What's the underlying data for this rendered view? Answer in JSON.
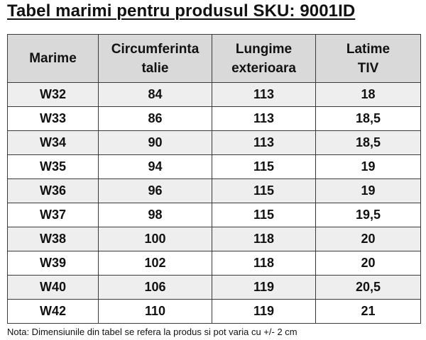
{
  "title": "Tabel marimi pentru produsul SKU: 9001ID",
  "table": {
    "headers": [
      [
        "Marime"
      ],
      [
        "Circumferinta",
        "talie"
      ],
      [
        "Lungime",
        "exterioara"
      ],
      [
        "Latime",
        "TIV"
      ]
    ],
    "rows": [
      [
        "W32",
        "84",
        "113",
        "18"
      ],
      [
        "W33",
        "86",
        "113",
        "18,5"
      ],
      [
        "W34",
        "90",
        "113",
        "18,5"
      ],
      [
        "W35",
        "94",
        "115",
        "19"
      ],
      [
        "W36",
        "96",
        "115",
        "19"
      ],
      [
        "W37",
        "98",
        "115",
        "19,5"
      ],
      [
        "W38",
        "100",
        "118",
        "20"
      ],
      [
        "W39",
        "102",
        "118",
        "20"
      ],
      [
        "W40",
        "106",
        "119",
        "20,5"
      ],
      [
        "W42",
        "110",
        "119",
        "21"
      ]
    ]
  },
  "note": "Nota: Dimensiunile din tabel se refera la produs si pot varia cu +/- 2 cm",
  "colors": {
    "header_background": "#d9d9d9",
    "row_stripe": "#eeeeee",
    "border": "#3a3a3a",
    "text": "#111111"
  }
}
